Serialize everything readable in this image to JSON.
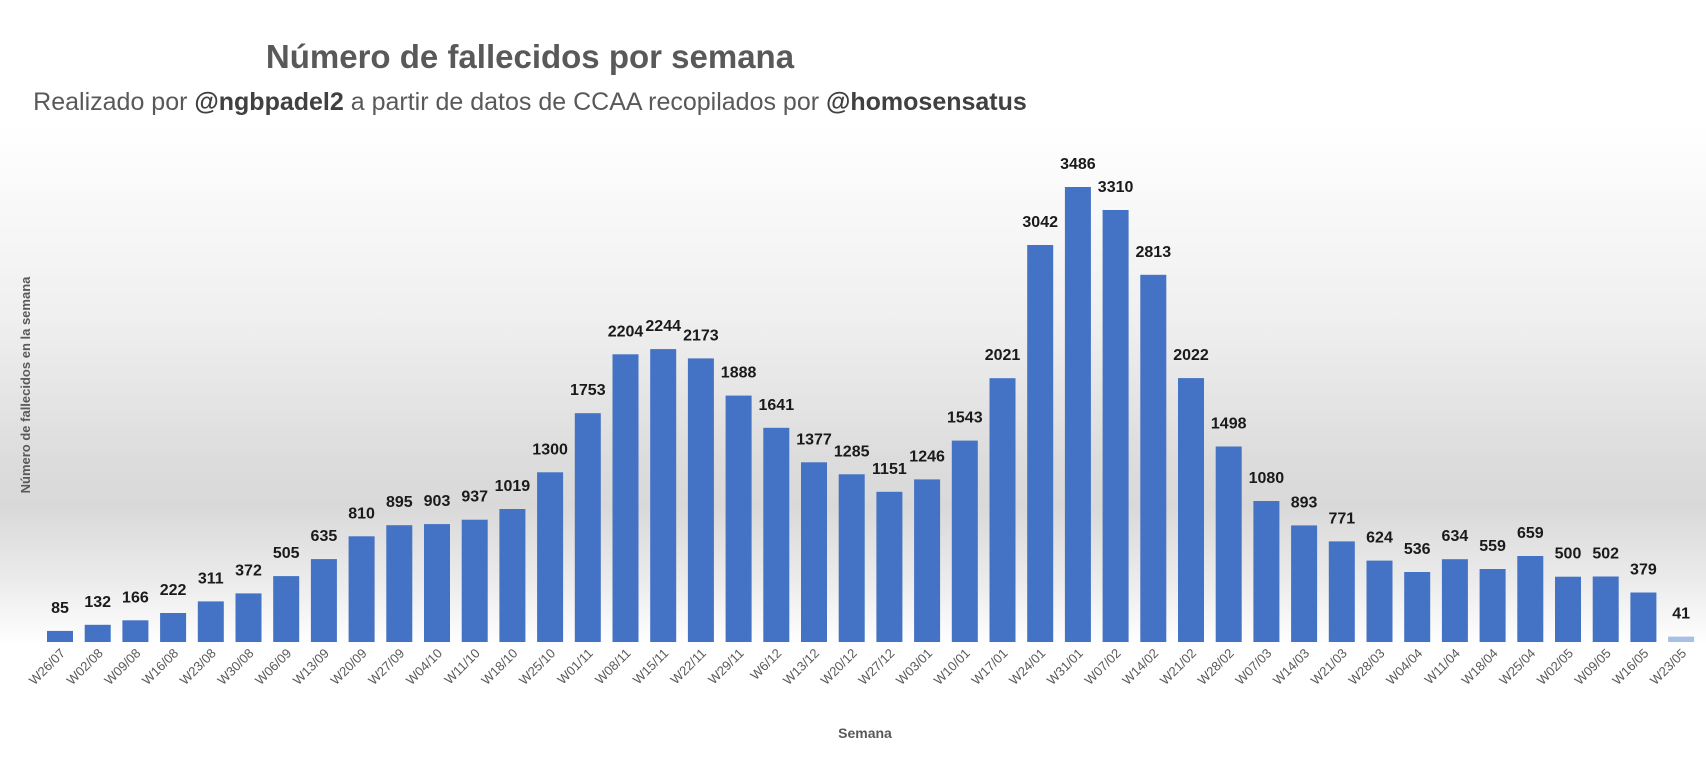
{
  "title": "Número de fallecidos por semana",
  "subtitle": {
    "prefix": "Realizado por ",
    "author": "@ngbpadel2",
    "middle": " a partir de datos de CCAA recopilados por ",
    "source": "@homosensatus"
  },
  "colors": {
    "bar": "#4472c4",
    "label": "#1a1a1a",
    "axis_text": "#595959"
  },
  "chart_data": {
    "type": "bar",
    "xlabel": "Semana",
    "ylabel": "Número de fallecidos en la semana",
    "ylim": [
      0,
      3600
    ],
    "grid": false,
    "legend": "none",
    "categories": [
      "W26/07",
      "W02/08",
      "W09/08",
      "W16/08",
      "W23/08",
      "W30/08",
      "W06/09",
      "W13/09",
      "W20/09",
      "W27/09",
      "W04/10",
      "W11/10",
      "W18/10",
      "W25/10",
      "W01/11",
      "W08/11",
      "W15/11",
      "W22/11",
      "W29/11",
      "W6/12",
      "W13/12",
      "W20/12",
      "W27/12",
      "W03/01",
      "W10/01",
      "W17/01",
      "W24/01",
      "W31/01",
      "W07/02",
      "W14/02",
      "W21/02",
      "W28/02",
      "W07/03",
      "W14/03",
      "W21/03",
      "W28/03",
      "W04/04",
      "W11/04",
      "W18/04",
      "W25/04",
      "W02/05",
      "W09/05",
      "W16/05",
      "W23/05"
    ],
    "values": [
      85,
      132,
      166,
      222,
      311,
      372,
      505,
      635,
      810,
      895,
      903,
      937,
      1019,
      1300,
      1753,
      2204,
      2244,
      2173,
      1888,
      1641,
      1377,
      1285,
      1151,
      1246,
      1543,
      2021,
      3042,
      3486,
      3310,
      2813,
      2022,
      1498,
      1080,
      893,
      771,
      624,
      536,
      634,
      559,
      659,
      500,
      502,
      379,
      41
    ]
  }
}
